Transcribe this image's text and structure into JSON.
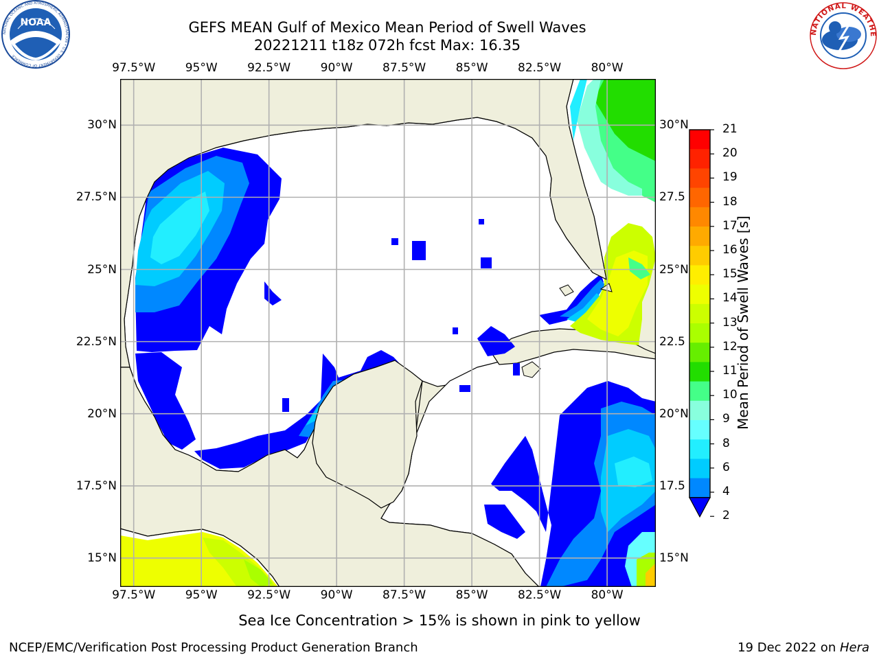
{
  "header": {
    "title_line1": "GEFS MEAN Gulf of Mexico Mean Period of Swell Waves",
    "title_line2": "20221211 t18z 072h fcst   Max: 16.35"
  },
  "logos": {
    "left_text": "NOAA",
    "left_ring_text": "NATIONAL OCEANIC AND ATMOSPHERIC ADMINISTRATION • U.S. DEPARTMENT OF COMMERCE",
    "right_ring_text": "NATIONAL WEATHER SERVICE"
  },
  "map": {
    "lon_labels": [
      "97.5°W",
      "95°W",
      "92.5°W",
      "90°W",
      "87.5°W",
      "85°W",
      "82.5°W",
      "80°W"
    ],
    "lat_labels_left": [
      "30°N",
      "27.5°N",
      "25°N",
      "22.5°N",
      "20°N",
      "17.5°N",
      "15°N"
    ],
    "lat_labels_right": [
      "30°N",
      "27.5",
      "25°N",
      "22.5",
      "20°N",
      "17.5",
      "15°N"
    ],
    "lon_range": [
      -98,
      -78.2
    ],
    "lat_range": [
      14,
      31.6
    ],
    "land_color": "#efefdc",
    "grid": true
  },
  "colorbar": {
    "label": "Mean Period of Swell Waves [s]",
    "ticks": [
      "21",
      "20",
      "19",
      "18",
      "17",
      "16",
      "15",
      "14",
      "13",
      "12",
      "11",
      "10",
      "9",
      "8",
      "6",
      "4",
      "2"
    ],
    "colors": [
      "#ff0000",
      "#ff2200",
      "#ff4400",
      "#ff6600",
      "#ff8800",
      "#ffaa00",
      "#ffcc00",
      "#ffee00",
      "#eeff00",
      "#ccff00",
      "#aaff00",
      "#66ee00",
      "#22dd00",
      "#44ff88",
      "#88ffdd",
      "#66ffff",
      "#22eeff",
      "#00ccff",
      "#0088ff",
      "#0000ff"
    ]
  },
  "footer": {
    "ice_note": "Sea Ice Concentration > 15% is shown in pink to yellow",
    "left": "NCEP/EMC/Verification Post Processing Product Generation Branch",
    "right_date": "19 Dec 2022 on ",
    "right_machine": "Hera"
  }
}
